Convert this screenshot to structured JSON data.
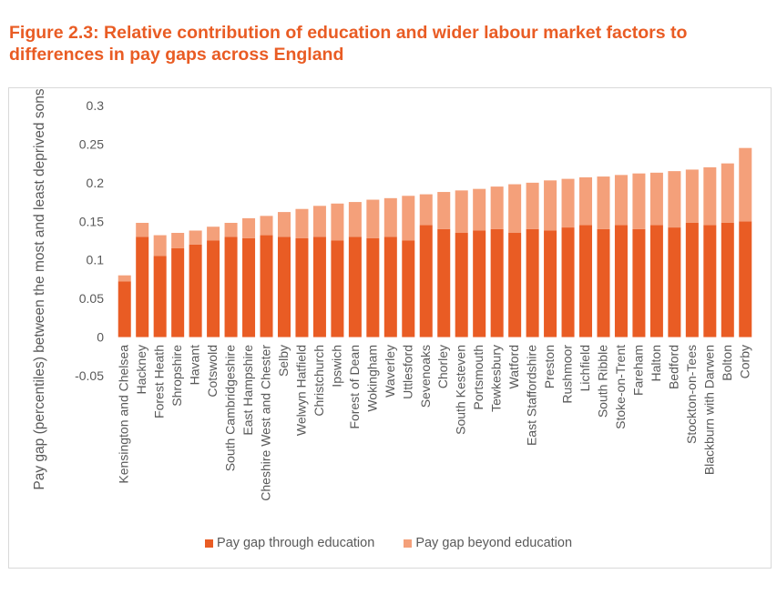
{
  "figure": {
    "title": "Figure 2.3: Relative contribution of education and wider labour market factors to differences in pay gaps across England"
  },
  "colors": {
    "title": "#E95C24",
    "education": "#E95C24",
    "beyond": "#F4A07A",
    "axis_text": "#595959",
    "gridline": "#D9D9D9"
  },
  "chart_data": {
    "type": "bar",
    "stacked": true,
    "ylabel": "Pay gap (percentiles) between the most and least deprived sons",
    "xlabel": "",
    "ylim": [
      -0.05,
      0.3
    ],
    "yticks": [
      -0.05,
      0,
      0.05,
      0.1,
      0.15,
      0.2,
      0.25,
      0.3
    ],
    "ytick_labels": [
      "-0.05",
      "0",
      "0.05",
      "0.1",
      "0.15",
      "0.2",
      "0.25",
      "0.3"
    ],
    "grid": false,
    "legend_position": "bottom",
    "category_labels": [
      "Kensington and Chelsea",
      "Hackney",
      "Forest Heath",
      "Shropshire",
      "Havant",
      "Cotswold",
      "South Cambridgeshire",
      "East Hampshire",
      "Cheshire West and Chester",
      "Selby",
      "Welwyn Hatfield",
      "Christchurch",
      "Ipswich",
      "Forest of Dean",
      "Wokingham",
      "Waverley",
      "Uttlesford",
      "Sevenoaks",
      "Chorley",
      "South Kesteven",
      "Portsmouth",
      "Tewkesbury",
      "Watford",
      "East Staffordshire",
      "Preston",
      "Rushmoor",
      "Lichfield",
      "South Ribble",
      "Stoke-on-Trent",
      "Fareham",
      "Halton",
      "Bedford",
      "Stockton-on-Tees",
      "Blackburn with Darwen",
      "Bolton",
      "Corby"
    ],
    "series": [
      {
        "name": "Pay gap through education",
        "values": [
          0.072,
          0.13,
          0.105,
          0.115,
          0.12,
          0.125,
          0.13,
          0.128,
          0.132,
          0.13,
          0.128,
          0.13,
          0.125,
          0.13,
          0.128,
          0.13,
          0.125,
          0.145,
          0.14,
          0.135,
          0.138,
          0.14,
          0.135,
          0.14,
          0.138,
          0.142,
          0.145,
          0.14,
          0.145,
          0.14,
          0.145,
          0.142,
          0.148,
          0.145,
          0.148,
          0.15
        ]
      },
      {
        "name": "Pay gap beyond education",
        "values": [
          0.008,
          0.018,
          0.027,
          0.02,
          0.018,
          0.018,
          0.018,
          0.026,
          0.025,
          0.032,
          0.038,
          0.04,
          0.048,
          0.045,
          0.05,
          0.05,
          0.058,
          0.04,
          0.048,
          0.055,
          0.054,
          0.055,
          0.063,
          0.06,
          0.065,
          0.063,
          0.062,
          0.068,
          0.065,
          0.072,
          0.068,
          0.073,
          0.069,
          0.075,
          0.077,
          0.095
        ]
      }
    ]
  }
}
